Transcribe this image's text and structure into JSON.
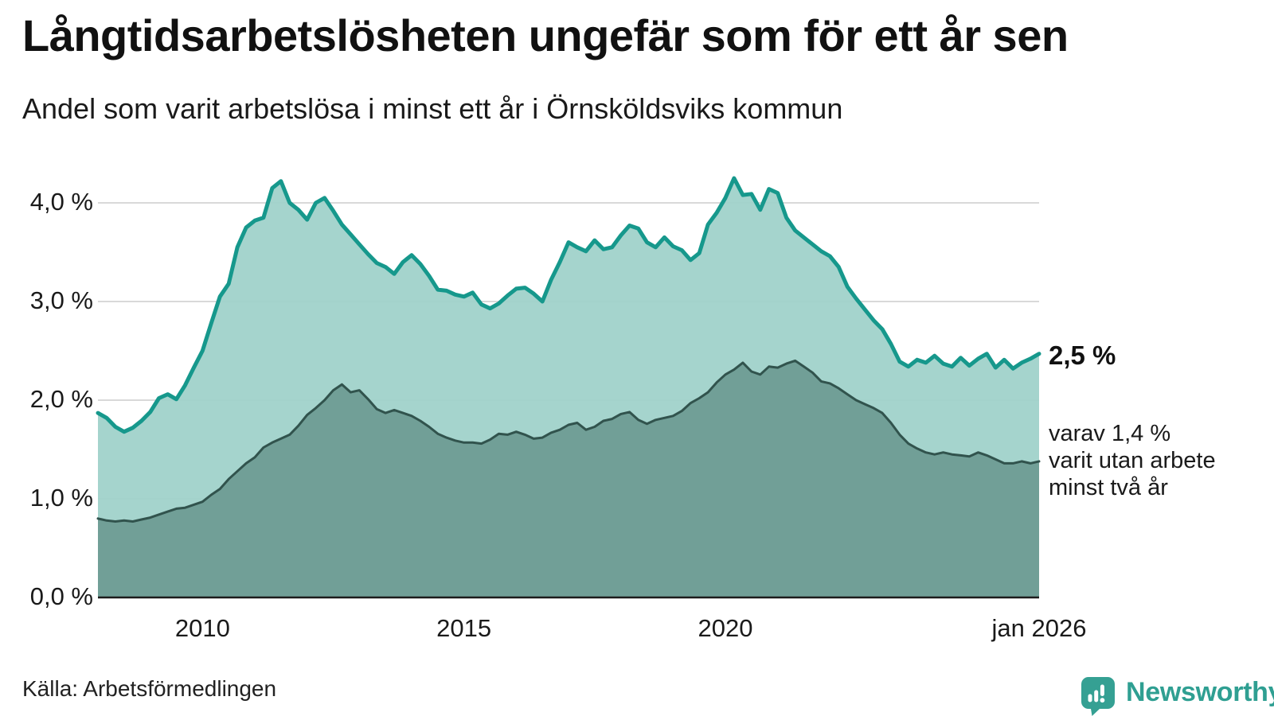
{
  "header": {
    "title": "Långtidsarbetslösheten ungefär som för ett år sen",
    "subtitle": "Andel som varit arbetslösa i minst ett år i Örnsköldsviks kommun"
  },
  "annotations": {
    "end_value_label": "2,5 %",
    "secondary_note": "varav 1,4 %\nvarit utan arbete\nminst två år"
  },
  "footer": {
    "source": "Källa: Arbetsförmedlingen",
    "brand": "Newsworthy"
  },
  "colors": {
    "line_total": "#16988c",
    "fill_total": "#9fd1ca",
    "line_two_years": "#31534d",
    "fill_two_years": "#6d9b94",
    "gridline": "#d9d9d9",
    "axis": "#1c1c1c",
    "brand_teal": "#35a093"
  },
  "chart_data": {
    "type": "area",
    "title": "Långtidsarbetslösheten ungefär som för ett år sen",
    "subtitle": "Andel som varit arbetslösa i minst ett år i Örnsköldsviks kommun",
    "x_start_year": 2008,
    "x_step_years": 0.16667,
    "x_end_year": 2026,
    "ylim": [
      0,
      4.4
    ],
    "grid": true,
    "x_ticks": [
      {
        "label": "2010",
        "year": 2010
      },
      {
        "label": "2015",
        "year": 2015
      },
      {
        "label": "2020",
        "year": 2020
      },
      {
        "label": "jan 2026",
        "year": 2026
      }
    ],
    "y_ticks": [
      {
        "label": "0,0 %",
        "value": 0
      },
      {
        "label": "1,0 %",
        "value": 1
      },
      {
        "label": "2,0 %",
        "value": 2
      },
      {
        "label": "3,0 %",
        "value": 3
      },
      {
        "label": "4,0 %",
        "value": 4
      }
    ],
    "series": [
      {
        "name": "arbetslösa minst ett år",
        "end_value_pct": 2.5,
        "values": [
          1.87,
          1.82,
          1.73,
          1.68,
          1.72,
          1.79,
          1.88,
          2.02,
          2.06,
          2.01,
          2.15,
          2.33,
          2.5,
          2.78,
          3.05,
          3.18,
          3.55,
          3.75,
          3.82,
          3.85,
          4.15,
          4.22,
          4.0,
          3.93,
          3.83,
          4.0,
          4.05,
          3.92,
          3.78,
          3.68,
          3.58,
          3.48,
          3.39,
          3.35,
          3.28,
          3.4,
          3.47,
          3.38,
          3.26,
          3.12,
          3.11,
          3.07,
          3.05,
          3.09,
          2.97,
          2.93,
          2.98,
          3.06,
          3.13,
          3.14,
          3.08,
          3.0,
          3.22,
          3.4,
          3.6,
          3.55,
          3.51,
          3.62,
          3.53,
          3.55,
          3.67,
          3.77,
          3.74,
          3.6,
          3.55,
          3.65,
          3.56,
          3.52,
          3.42,
          3.49,
          3.78,
          3.9,
          4.05,
          4.25,
          4.08,
          4.09,
          3.93,
          4.14,
          4.1,
          3.85,
          3.72,
          3.65,
          3.58,
          3.51,
          3.46,
          3.35,
          3.15,
          3.03,
          2.92,
          2.81,
          2.72,
          2.57,
          2.39,
          2.34,
          2.41,
          2.38,
          2.45,
          2.37,
          2.34,
          2.43,
          2.35,
          2.42,
          2.47,
          2.33,
          2.41,
          2.32,
          2.38,
          2.42,
          2.47
        ]
      },
      {
        "name": "varav utan arbete minst två år",
        "end_value_pct": 1.4,
        "values": [
          0.8,
          0.78,
          0.77,
          0.78,
          0.77,
          0.79,
          0.81,
          0.84,
          0.87,
          0.9,
          0.91,
          0.94,
          0.97,
          1.04,
          1.1,
          1.2,
          1.28,
          1.36,
          1.42,
          1.52,
          1.57,
          1.61,
          1.65,
          1.74,
          1.85,
          1.92,
          2.0,
          2.1,
          2.16,
          2.08,
          2.1,
          2.01,
          1.91,
          1.87,
          1.9,
          1.87,
          1.84,
          1.79,
          1.73,
          1.66,
          1.62,
          1.59,
          1.57,
          1.57,
          1.56,
          1.6,
          1.66,
          1.65,
          1.68,
          1.65,
          1.61,
          1.62,
          1.67,
          1.7,
          1.75,
          1.77,
          1.7,
          1.73,
          1.79,
          1.81,
          1.86,
          1.88,
          1.8,
          1.76,
          1.8,
          1.82,
          1.84,
          1.89,
          1.97,
          2.02,
          2.08,
          2.18,
          2.26,
          2.31,
          2.38,
          2.29,
          2.26,
          2.34,
          2.33,
          2.37,
          2.4,
          2.34,
          2.28,
          2.19,
          2.17,
          2.12,
          2.06,
          2.0,
          1.96,
          1.92,
          1.87,
          1.77,
          1.65,
          1.56,
          1.51,
          1.47,
          1.45,
          1.47,
          1.45,
          1.44,
          1.43,
          1.47,
          1.44,
          1.4,
          1.36,
          1.36,
          1.38,
          1.36,
          1.38
        ]
      }
    ]
  }
}
